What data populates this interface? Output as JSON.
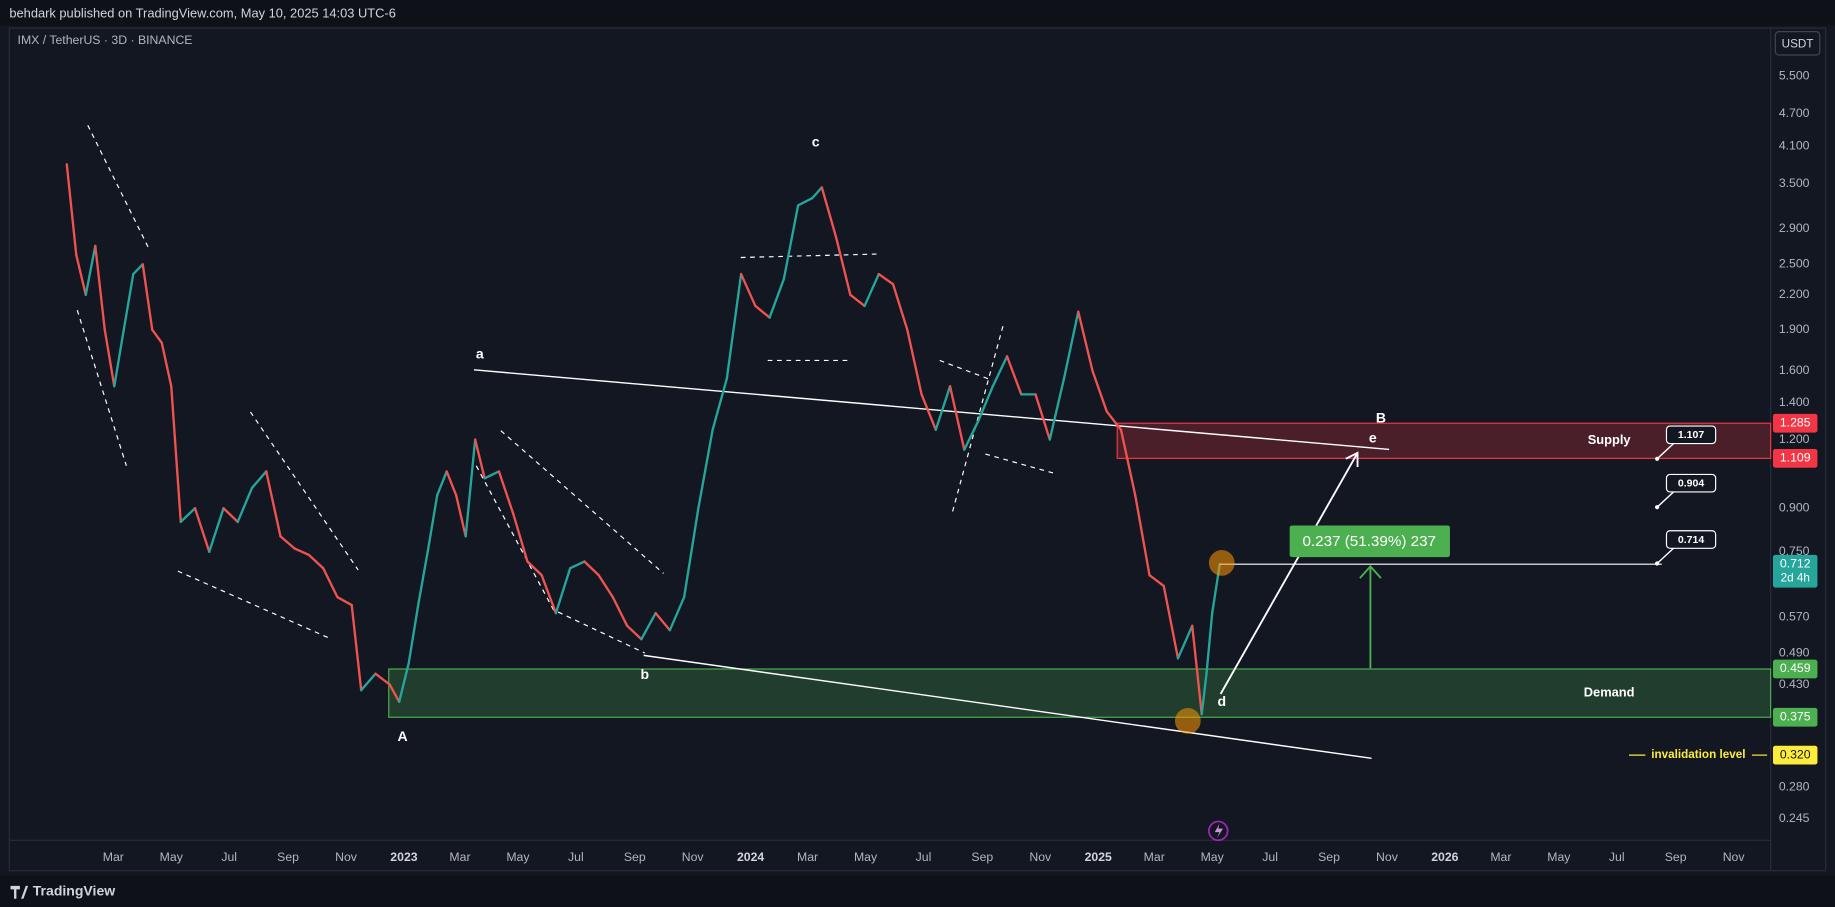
{
  "chart_data": {
    "type": "line",
    "publisher_line": "behdark published on TradingView.com, May 10, 2025 14:03 UTC-6",
    "title": "IMX / TetherUS · 3D · BINANCE",
    "currency": "USDT",
    "brand": "TradingView",
    "log_scale": true,
    "grid": false,
    "up_color": "#26a69a",
    "down_color": "#ef5350",
    "xlim": [
      "2021-11-14",
      "2026-12-10"
    ],
    "ylim": [
      0.224,
      6.79
    ],
    "xticks": [
      {
        "value": "2022-03-01",
        "label": "Mar"
      },
      {
        "value": "2022-05-01",
        "label": "May"
      },
      {
        "value": "2022-07-01",
        "label": "Jul"
      },
      {
        "value": "2022-09-01",
        "label": "Sep"
      },
      {
        "value": "2022-11-01",
        "label": "Nov"
      },
      {
        "value": "2023-01-01",
        "label": "2023"
      },
      {
        "value": "2023-03-01",
        "label": "Mar"
      },
      {
        "value": "2023-05-01",
        "label": "May"
      },
      {
        "value": "2023-07-01",
        "label": "Jul"
      },
      {
        "value": "2023-09-01",
        "label": "Sep"
      },
      {
        "value": "2023-11-01",
        "label": "Nov"
      },
      {
        "value": "2024-01-01",
        "label": "2024"
      },
      {
        "value": "2024-03-01",
        "label": "Mar"
      },
      {
        "value": "2024-05-01",
        "label": "May"
      },
      {
        "value": "2024-07-01",
        "label": "Jul"
      },
      {
        "value": "2024-09-01",
        "label": "Sep"
      },
      {
        "value": "2024-11-01",
        "label": "Nov"
      },
      {
        "value": "2025-01-01",
        "label": "2025"
      },
      {
        "value": "2025-03-01",
        "label": "Mar"
      },
      {
        "value": "2025-05-01",
        "label": "May"
      },
      {
        "value": "2025-07-01",
        "label": "Jul"
      },
      {
        "value": "2025-09-01",
        "label": "Sep"
      },
      {
        "value": "2025-11-01",
        "label": "Nov"
      },
      {
        "value": "2026-01-01",
        "label": "2026"
      },
      {
        "value": "2026-03-01",
        "label": "Mar"
      },
      {
        "value": "2026-05-01",
        "label": "May"
      },
      {
        "value": "2026-07-01",
        "label": "Jul"
      },
      {
        "value": "2026-09-01",
        "label": "Sep"
      },
      {
        "value": "2026-11-01",
        "label": "Nov"
      }
    ],
    "yticks": [
      {
        "value": 5.5,
        "label": "5.500"
      },
      {
        "value": 4.7,
        "label": "4.700"
      },
      {
        "value": 4.1,
        "label": "4.100"
      },
      {
        "value": 3.5,
        "label": "3.500"
      },
      {
        "value": 2.9,
        "label": "2.900"
      },
      {
        "value": 2.5,
        "label": "2.500"
      },
      {
        "value": 2.2,
        "label": "2.200"
      },
      {
        "value": 1.9,
        "label": "1.900"
      },
      {
        "value": 1.6,
        "label": "1.600"
      },
      {
        "value": 1.4,
        "label": "1.400"
      },
      {
        "value": 1.2,
        "label": "1.200"
      },
      {
        "value": 0.9,
        "label": "0.900"
      },
      {
        "value": 0.75,
        "label": "0.750"
      },
      {
        "value": 0.57,
        "label": "0.570"
      },
      {
        "value": 0.49,
        "label": "0.490"
      },
      {
        "value": 0.43,
        "label": "0.430"
      },
      {
        "value": 0.28,
        "label": "0.280"
      },
      {
        "value": 0.245,
        "label": "0.245"
      }
    ],
    "x": [
      "2022-01-11",
      "2022-01-21",
      "2022-01-31",
      "2022-02-10",
      "2022-02-20",
      "2022-03-02",
      "2022-03-12",
      "2022-03-22",
      "2022-04-01",
      "2022-04-11",
      "2022-04-21",
      "2022-05-01",
      "2022-05-11",
      "2022-05-26",
      "2022-06-10",
      "2022-06-25",
      "2022-07-10",
      "2022-07-25",
      "2022-08-09",
      "2022-08-24",
      "2022-09-08",
      "2022-09-23",
      "2022-10-08",
      "2022-10-23",
      "2022-11-07",
      "2022-11-17",
      "2022-12-02",
      "2022-12-17",
      "2022-12-27",
      "2023-01-06",
      "2023-01-16",
      "2023-01-26",
      "2023-02-05",
      "2023-02-15",
      "2023-02-25",
      "2023-03-07",
      "2023-03-17",
      "2023-03-27",
      "2023-04-11",
      "2023-04-26",
      "2023-05-11",
      "2023-05-26",
      "2023-06-10",
      "2023-06-25",
      "2023-07-10",
      "2023-07-25",
      "2023-08-09",
      "2023-08-24",
      "2023-09-08",
      "2023-09-23",
      "2023-10-08",
      "2023-10-23",
      "2023-11-07",
      "2023-11-22",
      "2023-12-07",
      "2023-12-22",
      "2024-01-06",
      "2024-01-21",
      "2024-02-05",
      "2024-02-20",
      "2024-03-06",
      "2024-03-16",
      "2024-03-31",
      "2024-04-15",
      "2024-04-30",
      "2024-05-15",
      "2024-05-30",
      "2024-06-14",
      "2024-06-29",
      "2024-07-14",
      "2024-07-29",
      "2024-08-13",
      "2024-08-28",
      "2024-09-12",
      "2024-09-27",
      "2024-10-12",
      "2024-10-27",
      "2024-11-11",
      "2024-11-26",
      "2024-12-11",
      "2024-12-26",
      "2025-01-10",
      "2025-01-25",
      "2025-02-09",
      "2025-02-24",
      "2025-03-11",
      "2025-03-26",
      "2025-04-10",
      "2025-04-20",
      "2025-04-25",
      "2025-05-01",
      "2025-05-09"
    ],
    "values": [
      3.8,
      2.6,
      2.2,
      2.7,
      1.9,
      1.5,
      1.9,
      2.4,
      2.5,
      1.9,
      1.8,
      1.5,
      0.85,
      0.9,
      0.75,
      0.9,
      0.85,
      0.98,
      1.05,
      0.8,
      0.76,
      0.74,
      0.7,
      0.62,
      0.6,
      0.42,
      0.45,
      0.43,
      0.4,
      0.47,
      0.6,
      0.75,
      0.95,
      1.05,
      0.95,
      0.8,
      1.2,
      1.02,
      1.05,
      0.88,
      0.72,
      0.68,
      0.58,
      0.7,
      0.72,
      0.68,
      0.62,
      0.55,
      0.52,
      0.58,
      0.54,
      0.62,
      0.9,
      1.25,
      1.55,
      2.4,
      2.1,
      2.0,
      2.35,
      3.2,
      3.3,
      3.45,
      2.8,
      2.2,
      2.1,
      2.4,
      2.3,
      1.9,
      1.45,
      1.25,
      1.5,
      1.15,
      1.3,
      1.5,
      1.7,
      1.45,
      1.45,
      1.2,
      1.55,
      2.05,
      1.6,
      1.35,
      1.25,
      0.95,
      0.68,
      0.65,
      0.48,
      0.55,
      0.38,
      0.45,
      0.58,
      0.712
    ],
    "zones": [
      {
        "label": "Supply",
        "low": 1.109,
        "high": 1.285,
        "start": "2025-01-21",
        "color": "#f23645"
      },
      {
        "label": "Demand",
        "low": 0.375,
        "high": 0.459,
        "start": "2022-12-16",
        "color": "#4caf50"
      }
    ],
    "price_tags": [
      {
        "value": 1.285,
        "label": "1.285",
        "color": "#f23645"
      },
      {
        "value": 1.109,
        "label": "1.109",
        "color": "#f23645"
      },
      {
        "value": 0.712,
        "label": "0.712",
        "color": "#26a69a"
      },
      {
        "value": 0.459,
        "label": "0.459",
        "color": "#4caf50"
      },
      {
        "value": 0.375,
        "label": "0.375",
        "color": "#4caf50"
      },
      {
        "value": 0.32,
        "label": "0.320",
        "color": "#ffeb3b"
      }
    ],
    "countdown": "2d 4h",
    "targets": [
      1.107,
      0.904,
      0.714
    ],
    "measure_label": "0.237 (51.39%) 237",
    "invalidation_label": "invalidation level",
    "wave_labels": [
      "a",
      "b",
      "c",
      "A",
      "B",
      "d",
      "e"
    ]
  }
}
